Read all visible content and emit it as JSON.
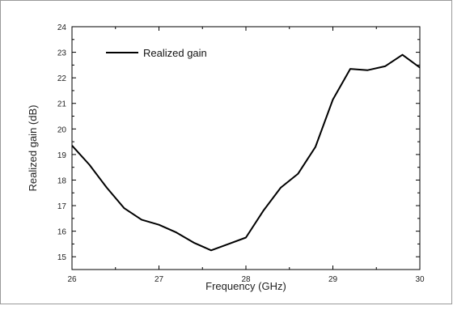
{
  "chart_data": {
    "type": "line",
    "xlabel": "Frequency (GHz)",
    "ylabel": "Realized gain (dB)",
    "xlim": [
      26,
      30
    ],
    "ylim": [
      14.5,
      24
    ],
    "x_ticks": [
      "26",
      "27",
      "28",
      "29",
      "30"
    ],
    "y_ticks": [
      "15",
      "16",
      "17",
      "18",
      "19",
      "20",
      "21",
      "22",
      "23",
      "24"
    ],
    "legend_position": "top-left",
    "grid": false,
    "series": [
      {
        "name": "Realized gain",
        "color": "#000000",
        "x": [
          26.0,
          26.2,
          26.4,
          26.6,
          26.8,
          27.0,
          27.2,
          27.4,
          27.6,
          27.8,
          28.0,
          28.2,
          28.4,
          28.6,
          28.8,
          29.0,
          29.2,
          29.4,
          29.6,
          29.8,
          30.0
        ],
        "y": [
          19.35,
          18.6,
          17.7,
          16.9,
          16.45,
          16.25,
          15.95,
          15.55,
          15.25,
          15.5,
          15.75,
          16.8,
          17.7,
          18.25,
          19.3,
          21.15,
          22.35,
          22.3,
          22.45,
          22.9,
          22.4
        ]
      }
    ]
  }
}
